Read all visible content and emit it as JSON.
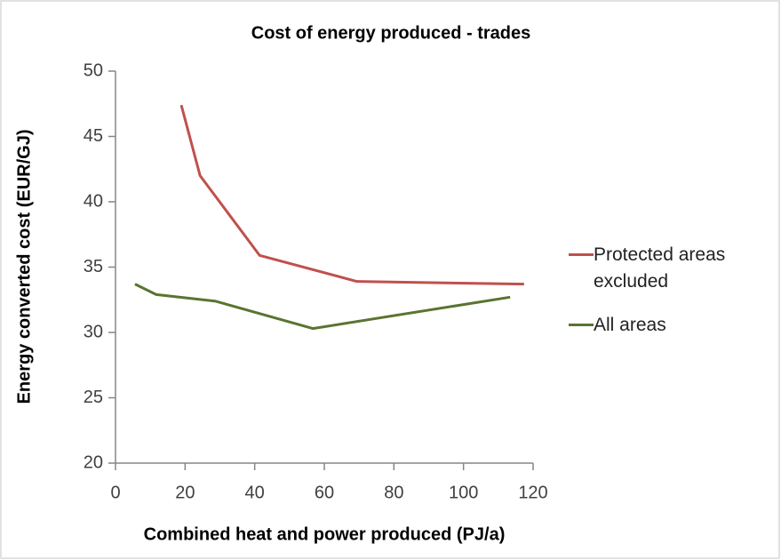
{
  "chart_data": {
    "type": "line",
    "title": "Cost of energy produced - trades",
    "x_label": "Combined heat and power produced (PJ/a)",
    "y_label": "Energy converted cost (EUR/GJ)",
    "xlim": [
      0,
      120
    ],
    "xticks": [
      0,
      20,
      40,
      60,
      80,
      100,
      120
    ],
    "ylim": [
      20,
      50
    ],
    "yticks": [
      20,
      25,
      30,
      35,
      40,
      45,
      50
    ],
    "grid": false,
    "legend": "right",
    "series": [
      {
        "name": "Protected areas excluded",
        "color": "#c0504d",
        "x": [
          18.9,
          24.3,
          41.4,
          69.4,
          117.4
        ],
        "values": [
          47.4,
          42.0,
          35.9,
          33.9,
          33.7
        ]
      },
      {
        "name": "All areas",
        "color": "#5a7430",
        "x": [
          5.6,
          11.7,
          28.6,
          56.7,
          113.4
        ],
        "values": [
          33.7,
          32.9,
          32.4,
          30.3,
          32.7
        ]
      }
    ]
  }
}
